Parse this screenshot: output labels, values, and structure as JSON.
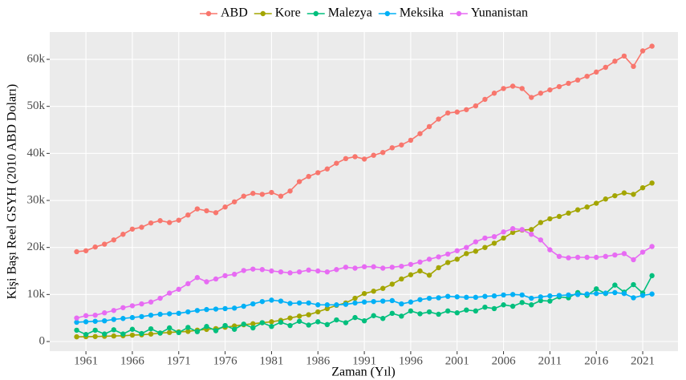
{
  "chart_data": {
    "type": "line",
    "x_label": "Zaman (Yıl)",
    "y_label": "Kişi Başı Reel GSYH (2010 ABD Doları)",
    "x": [
      1960,
      1961,
      1962,
      1963,
      1964,
      1965,
      1966,
      1967,
      1968,
      1969,
      1970,
      1971,
      1972,
      1973,
      1974,
      1975,
      1976,
      1977,
      1978,
      1979,
      1980,
      1981,
      1982,
      1983,
      1984,
      1985,
      1986,
      1987,
      1988,
      1989,
      1990,
      1991,
      1992,
      1993,
      1994,
      1995,
      1996,
      1997,
      1998,
      1999,
      2000,
      2001,
      2002,
      2003,
      2004,
      2005,
      2006,
      2007,
      2008,
      2009,
      2010,
      2011,
      2012,
      2013,
      2014,
      2015,
      2016,
      2017,
      2018,
      2019,
      2020,
      2021,
      2022
    ],
    "xlim": [
      1957.1,
      2024.8
    ],
    "xticks": [
      1961,
      1966,
      1971,
      1976,
      1981,
      1986,
      1991,
      1996,
      2001,
      2006,
      2011,
      2016,
      2021
    ],
    "ylim": [
      -2045,
      65800
    ],
    "yticks": [
      0,
      {
        "value": 10000,
        "label": "10k"
      },
      {
        "value": 20000,
        "label": "20k"
      },
      {
        "value": 30000,
        "label": "30k"
      },
      {
        "value": 40000,
        "label": "40k"
      },
      {
        "value": 50000,
        "label": "50k"
      },
      {
        "value": 60000,
        "label": "60k"
      }
    ],
    "grid": true,
    "legend_position": "top",
    "series": [
      {
        "name": "ABD",
        "color": "#F8766D",
        "values": [
          19100,
          19300,
          20100,
          20700,
          21600,
          22800,
          23900,
          24300,
          25200,
          25700,
          25300,
          25800,
          26900,
          28200,
          27800,
          27400,
          28600,
          29700,
          30900,
          31500,
          31300,
          31700,
          30900,
          32000,
          34000,
          35100,
          35900,
          36700,
          37900,
          38900,
          39300,
          38800,
          39600,
          40200,
          41200,
          41800,
          42800,
          44200,
          45700,
          47300,
          48600,
          48800,
          49300,
          50100,
          51500,
          52800,
          53800,
          54300,
          53800,
          51900,
          52800,
          53500,
          54200,
          54900,
          55600,
          56400,
          57300,
          58300,
          59600,
          60700,
          58500,
          61800,
          62800
        ]
      },
      {
        "name": "Kore",
        "color": "#A3A500",
        "values": [
          1000,
          1030,
          1060,
          1120,
          1180,
          1230,
          1360,
          1440,
          1590,
          1790,
          1930,
          2060,
          2150,
          2420,
          2580,
          2740,
          3030,
          3310,
          3570,
          3780,
          4000,
          4200,
          4500,
          5000,
          5400,
          5700,
          6300,
          7000,
          7700,
          8200,
          9200,
          10200,
          10700,
          11300,
          12200,
          13300,
          14200,
          15000,
          14100,
          15700,
          16800,
          17500,
          18700,
          19200,
          20000,
          20900,
          22000,
          23200,
          23700,
          23800,
          25300,
          26100,
          26600,
          27300,
          28000,
          28600,
          29400,
          30300,
          31000,
          31600,
          31300,
          32700,
          33700
        ]
      },
      {
        "name": "Malezya",
        "color": "#00BF7D",
        "values": [
          2400,
          1500,
          2400,
          1600,
          2500,
          1600,
          2600,
          1700,
          2700,
          1800,
          2900,
          1900,
          3000,
          2100,
          3200,
          2300,
          3400,
          2600,
          3700,
          2900,
          4000,
          3200,
          4100,
          3400,
          4300,
          3500,
          4200,
          3600,
          4600,
          4000,
          5100,
          4400,
          5500,
          4900,
          6000,
          5400,
          6500,
          5900,
          6300,
          5800,
          6500,
          6100,
          6700,
          6500,
          7300,
          7000,
          7800,
          7500,
          8300,
          7800,
          8700,
          8600,
          9500,
          9300,
          10400,
          9800,
          11200,
          10200,
          12000,
          10500,
          12100,
          10300,
          14000
        ]
      },
      {
        "name": "Meksika",
        "color": "#00B0F6",
        "values": [
          4100,
          4200,
          4300,
          4400,
          4700,
          4900,
          5100,
          5300,
          5600,
          5800,
          5900,
          6000,
          6300,
          6600,
          6800,
          6900,
          7000,
          7100,
          7500,
          8000,
          8500,
          8800,
          8600,
          8100,
          8200,
          8200,
          7800,
          7800,
          7800,
          7900,
          8200,
          8400,
          8500,
          8600,
          8700,
          8000,
          8400,
          8900,
          9200,
          9300,
          9600,
          9500,
          9400,
          9400,
          9600,
          9700,
          9900,
          10000,
          9900,
          9200,
          9500,
          9700,
          9800,
          9900,
          10000,
          10100,
          10200,
          10300,
          10400,
          10200,
          9300,
          9800,
          10100
        ]
      },
      {
        "name": "Yunanistan",
        "color": "#E76BF3",
        "values": [
          5000,
          5500,
          5600,
          6100,
          6600,
          7200,
          7600,
          8000,
          8400,
          9200,
          10300,
          11100,
          12300,
          13600,
          12700,
          13300,
          14000,
          14300,
          15100,
          15400,
          15300,
          15000,
          14800,
          14600,
          14800,
          15200,
          15000,
          14800,
          15300,
          15800,
          15600,
          15900,
          15900,
          15600,
          15800,
          16000,
          16400,
          16900,
          17500,
          18000,
          18600,
          19300,
          20000,
          21200,
          22000,
          22300,
          23300,
          24000,
          23800,
          22800,
          21600,
          19500,
          18100,
          17800,
          17900,
          17900,
          17900,
          18100,
          18400,
          18700,
          17400,
          19000,
          20200
        ]
      }
    ]
  }
}
